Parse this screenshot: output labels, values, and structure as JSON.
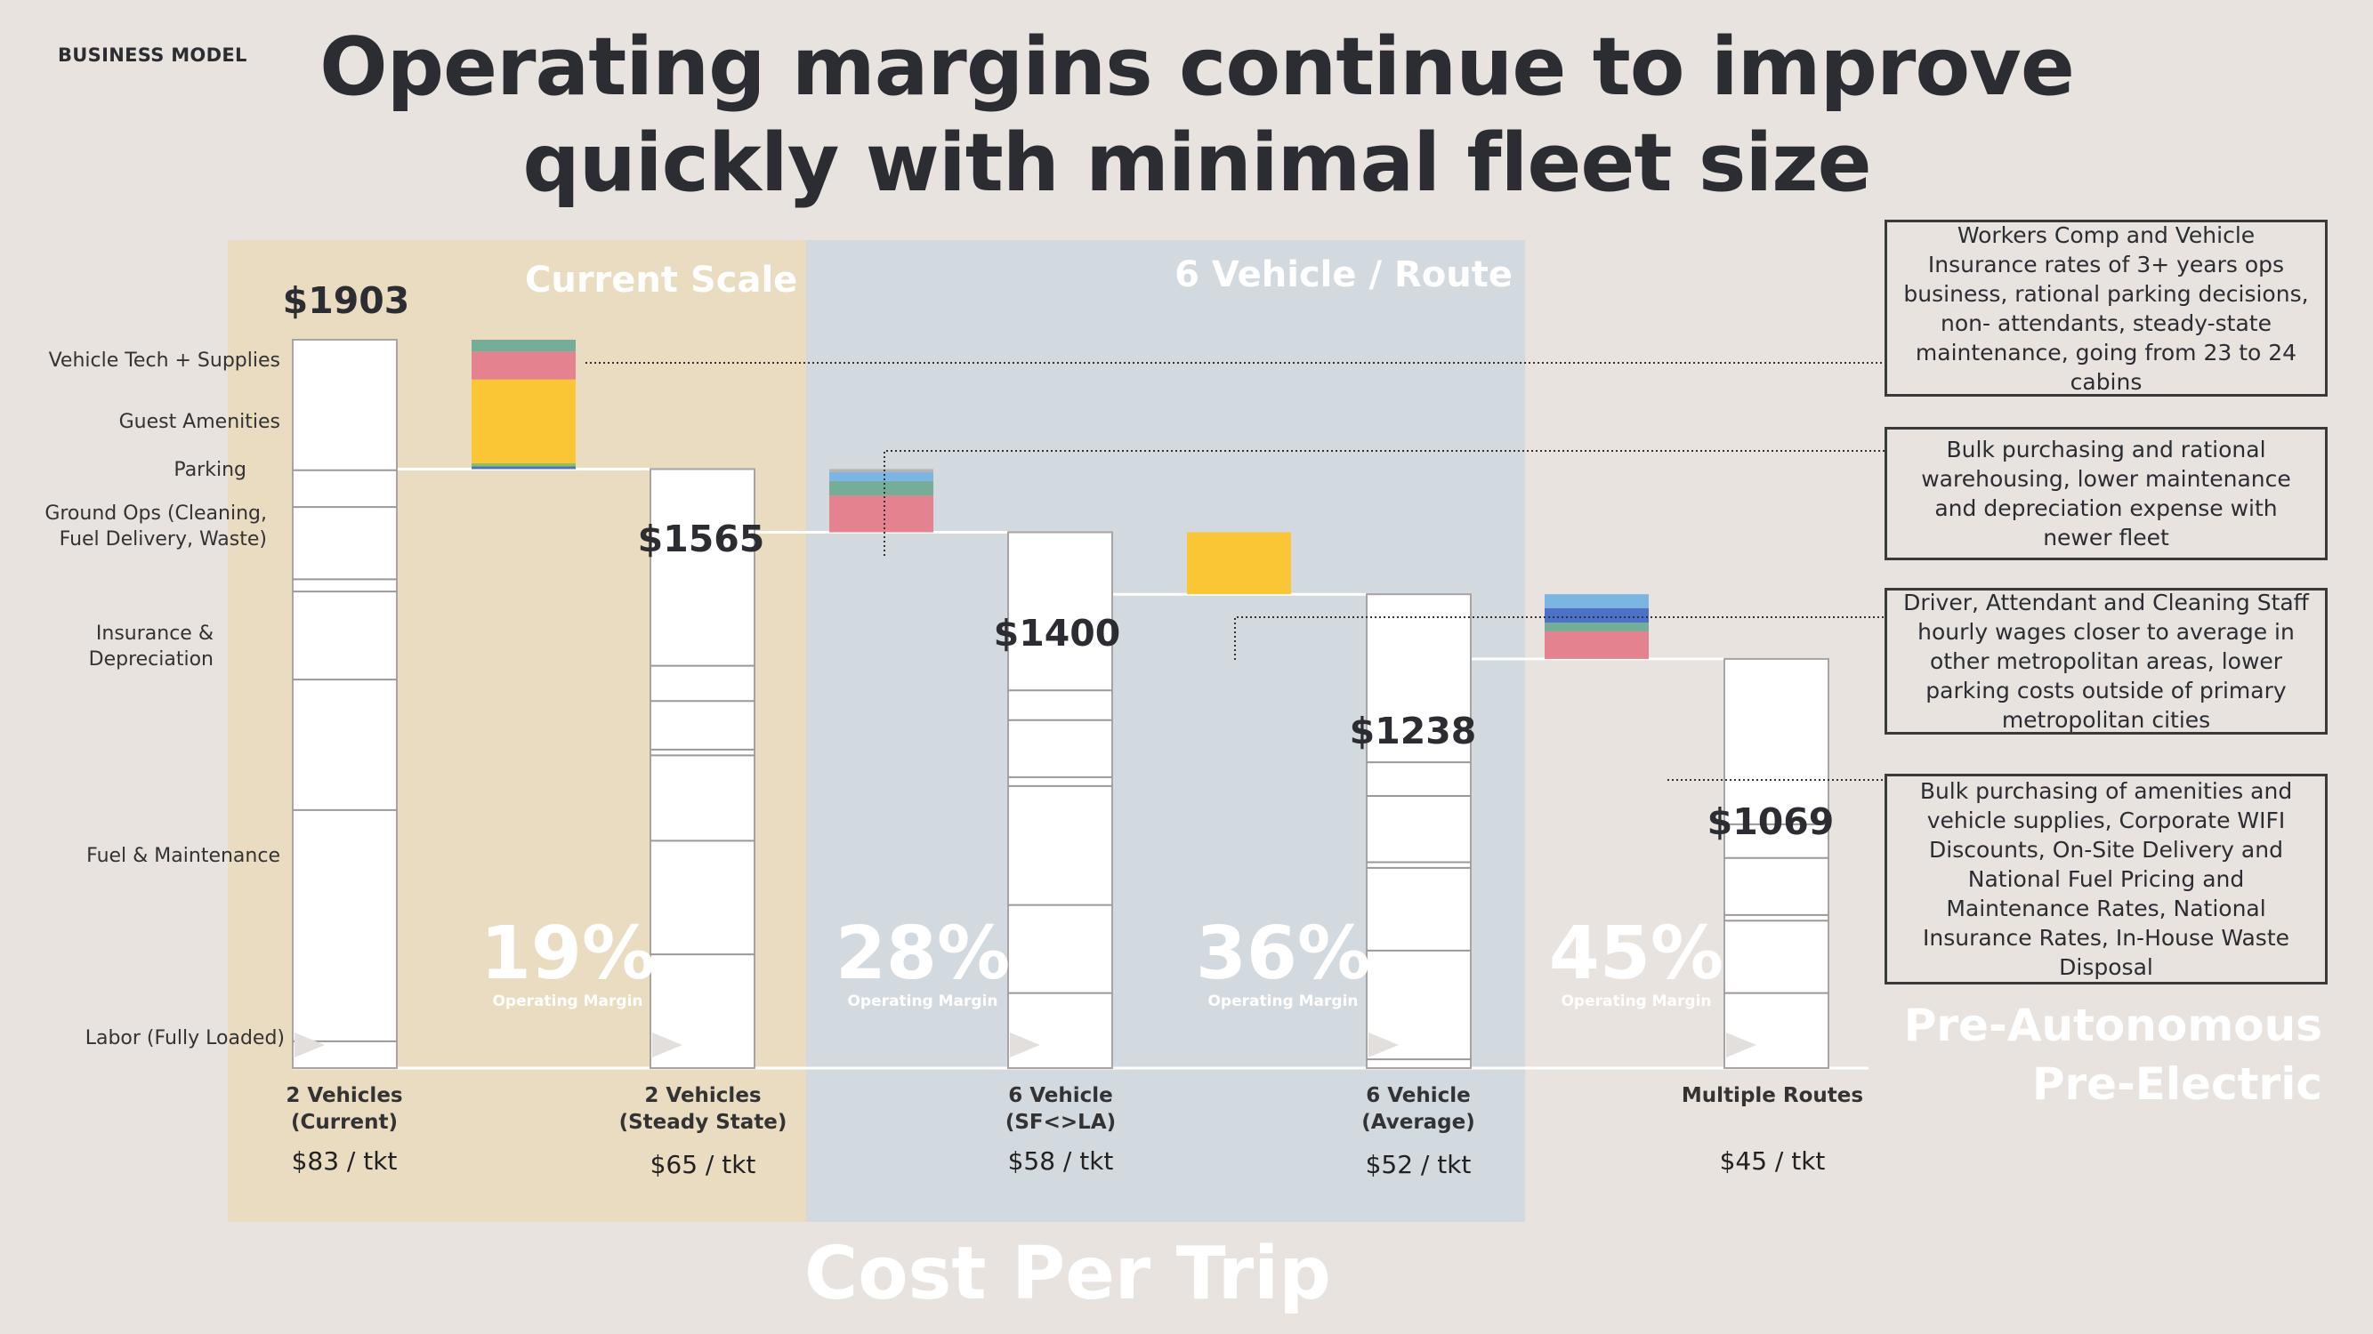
{
  "header": {
    "eyebrow": "BUSINESS MODEL",
    "title_line1": "Operating margins continue to improve",
    "title_line2": "quickly with minimal fleet size"
  },
  "zones": {
    "current": "Current Scale",
    "six_vehicle": "6 Vehicle / Route"
  },
  "colors": {
    "background": "#e8e3df",
    "current_zone": "#e9dcc0",
    "six_zone": "#d2d9df",
    "green": "#75ad98",
    "pink": "#e5828f",
    "yellow": "#fbc636",
    "lightblue": "#7ab5e4",
    "blue": "#4b72c6",
    "lightgreen": "#8fbf5d",
    "gray": "#b7b3b0"
  },
  "categories": [
    "Vehicle Tech + Supplies",
    "Guest Amenities",
    "Parking",
    "Ground Ops (Cleaning, Fuel Delivery, Waste)",
    "Insurance & Depreciation",
    "Fuel & Maintenance",
    "Labor (Fully Loaded)"
  ],
  "notes": [
    "Workers Comp and Vehicle Insurance rates of  3+ years ops business, rational parking decisions, non- attendants, steady-state maintenance,  going from 23 to 24 cabins",
    "Bulk purchasing and rational warehousing, lower maintenance and depreciation expense with newer fleet",
    "Driver, Attendant and Cleaning Staff hourly wages closer to average in other metropolitan areas, lower parking costs outside of primary metropolitan cities",
    "Bulk purchasing of amenities and vehicle supplies, Corporate WIFI Discounts, On-Site Delivery and National Fuel Pricing and Maintenance Rates, National Insurance Rates, In-House Waste Disposal"
  ],
  "margins": [
    {
      "pct": "19%",
      "label": "Operating Margin"
    },
    {
      "pct": "28%",
      "label": "Operating Margin"
    },
    {
      "pct": "36%",
      "label": "Operating Margin"
    },
    {
      "pct": "45%",
      "label": "Operating Margin"
    }
  ],
  "columns": [
    {
      "name_line1": "2 Vehicles",
      "name_line2": "(Current)",
      "price": "$83 / tkt",
      "total_label": "$1903"
    },
    {
      "name_line1": "2 Vehicles",
      "name_line2": "(Steady State)",
      "price": "$65 / tkt",
      "total_label": "$1565"
    },
    {
      "name_line1": "6 Vehicle",
      "name_line2": "(SF<>LA)",
      "price": "$58 / tkt",
      "total_label": "$1400"
    },
    {
      "name_line1": "6 Vehicle",
      "name_line2": "(Average)",
      "price": "$52 / tkt",
      "total_label": "$1238"
    },
    {
      "name_line1": "Multiple Routes",
      "name_line2": "",
      "price": "$45 / tkt",
      "total_label": "$1069"
    }
  ],
  "footer": "Cost Per Trip",
  "pre_label_line1": "Pre-Autonomous",
  "pre_label_line2": "Pre-Electric",
  "chart_data": {
    "type": "waterfall",
    "ylim": [
      0,
      1903
    ],
    "totals": [
      1903,
      1565,
      1400,
      1238,
      1069
    ],
    "stack_segments": {
      "2 Vehicles (Current)": {
        "Labor (Fully Loaded)": 70,
        "Fuel & Maintenance": 604,
        "Insurance & Depreciation": 341,
        "Ground Ops (Cleaning, Fuel Delivery, Waste)": 230,
        "Parking": 32,
        "Guest Amenities": 189,
        "Vehicle Tech + Supplies": 96
      },
      "2 Vehicles (Steady State)": {
        "Labor (Fully Loaded)": 297,
        "Fuel & Maintenance": 297,
        "Insurance & Depreciation": 223,
        "Ground Ops (Cleaning, Fuel Delivery, Waste)": 15,
        "Parking": 127,
        "Vehicle Tech + Supplies": 92
      },
      "6 Vehicle (SF<>LA)": {
        "Labor (Fully Loaded)": 196,
        "Fuel & Maintenance": 230,
        "Insurance & Depreciation": 311,
        "Ground Ops (Cleaning, Fuel Delivery, Waste)": 23,
        "Parking": 149,
        "Vehicle Tech + Supplies": 78
      },
      "6 Vehicle (Average)": {
        "Labor (Fully Loaded)": 23,
        "Fuel & Maintenance": 284,
        "Insurance & Depreciation": 216,
        "Ground Ops (Cleaning, Fuel Delivery, Waste)": 15,
        "Parking": 173,
        "Vehicle Tech + Supplies": 88
      },
      "Multiple Routes": {
        "Labor (Fully Loaded)": 196,
        "Fuel & Maintenance": 189,
        "Insurance & Depreciation": 15,
        "Ground Ops (Cleaning, Fuel Delivery, Waste)": 149,
        "Vehicle Tech + Supplies": 88
      }
    },
    "reductions": [
      {
        "from": "2 Vehicles (Current)",
        "amount": 338,
        "segments": [
          {
            "color": "green",
            "value": 31
          },
          {
            "color": "pink",
            "value": 73
          },
          {
            "color": "yellow",
            "value": 219
          },
          {
            "color": "lightgreen",
            "value": 8
          },
          {
            "color": "blue",
            "value": 7
          }
        ]
      },
      {
        "from": "2 Vehicles (Steady State)",
        "amount": 165,
        "segments": [
          {
            "color": "gray",
            "value": 8
          },
          {
            "color": "lightblue",
            "value": 23
          },
          {
            "color": "green",
            "value": 38
          },
          {
            "color": "pink",
            "value": 96
          }
        ]
      },
      {
        "from": "6 Vehicle (SF<>LA)",
        "amount": 162,
        "segments": [
          {
            "color": "yellow",
            "value": 162
          }
        ]
      },
      {
        "from": "6 Vehicle (Average)",
        "amount": 169,
        "segments": [
          {
            "color": "lightblue",
            "value": 36
          },
          {
            "color": "blue",
            "value": 38
          },
          {
            "color": "green",
            "value": 23
          },
          {
            "color": "pink",
            "value": 72
          }
        ]
      }
    ],
    "operating_margins": [
      "19%",
      "28%",
      "36%",
      "45%"
    ],
    "xlabel": "Cost Per Trip"
  }
}
